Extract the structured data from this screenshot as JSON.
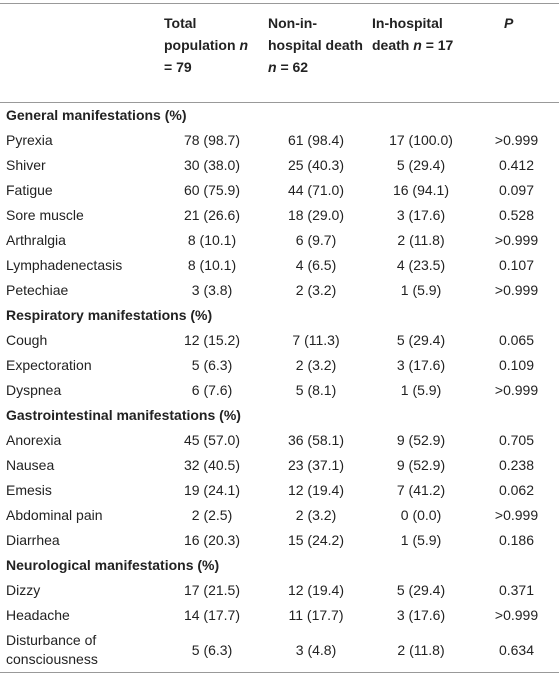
{
  "table": {
    "header": [
      {
        "text": ""
      },
      {
        "text": "Total population",
        "var": "n",
        "count": "= 79"
      },
      {
        "text": "Non-in-hospital death",
        "var": "n",
        "count": "= 62"
      },
      {
        "text": "In-hospital death",
        "var": "n",
        "count": "= 17"
      },
      {
        "text": "P"
      }
    ],
    "sections": [
      {
        "title": "General manifestations (%)",
        "rows": [
          [
            "Pyrexia",
            "78 (98.7)",
            "61 (98.4)",
            "17 (100.0)",
            ">0.999"
          ],
          [
            "Shiver",
            "30 (38.0)",
            "25 (40.3)",
            "5 (29.4)",
            "0.412"
          ],
          [
            "Fatigue",
            "60 (75.9)",
            "44 (71.0)",
            "16 (94.1)",
            "0.097"
          ],
          [
            "Sore muscle",
            "21 (26.6)",
            "18 (29.0)",
            "3 (17.6)",
            "0.528"
          ],
          [
            "Arthralgia",
            "8 (10.1)",
            "6 (9.7)",
            "2 (11.8)",
            ">0.999"
          ],
          [
            "Lymphadenectasis",
            "8 (10.1)",
            "4 (6.5)",
            "4 (23.5)",
            "0.107"
          ],
          [
            "Petechiae",
            "3 (3.8)",
            "2 (3.2)",
            "1 (5.9)",
            ">0.999"
          ]
        ]
      },
      {
        "title": "Respiratory manifestations (%)",
        "rows": [
          [
            "Cough",
            "12 (15.2)",
            "7 (11.3)",
            "5 (29.4)",
            "0.065"
          ],
          [
            "Expectoration",
            "5 (6.3)",
            "2 (3.2)",
            "3 (17.6)",
            "0.109"
          ],
          [
            "Dyspnea",
            "6 (7.6)",
            "5 (8.1)",
            "1 (5.9)",
            ">0.999"
          ]
        ]
      },
      {
        "title": "Gastrointestinal manifestations (%)",
        "rows": [
          [
            "Anorexia",
            "45 (57.0)",
            "36 (58.1)",
            "9 (52.9)",
            "0.705"
          ],
          [
            "Nausea",
            "32 (40.5)",
            "23 (37.1)",
            "9 (52.9)",
            "0.238"
          ],
          [
            "Emesis",
            "19 (24.1)",
            "12 (19.4)",
            "7 (41.2)",
            "0.062"
          ],
          [
            "Abdominal pain",
            "2 (2.5)",
            "2 (3.2)",
            "0 (0.0)",
            ">0.999"
          ],
          [
            "Diarrhea",
            "16 (20.3)",
            "15 (24.2)",
            "1 (5.9)",
            "0.186"
          ]
        ]
      },
      {
        "title": "Neurological manifestations (%)",
        "rows": [
          [
            "Dizzy",
            "17 (21.5)",
            "12 (19.4)",
            "5 (29.4)",
            "0.371"
          ],
          [
            "Headache",
            "14 (17.7)",
            "11 (17.7)",
            "3 (17.6)",
            ">0.999"
          ],
          [
            "Disturbance of consciousness",
            "5 (6.3)",
            "3 (4.8)",
            "2 (11.8)",
            "0.634"
          ]
        ]
      }
    ]
  }
}
